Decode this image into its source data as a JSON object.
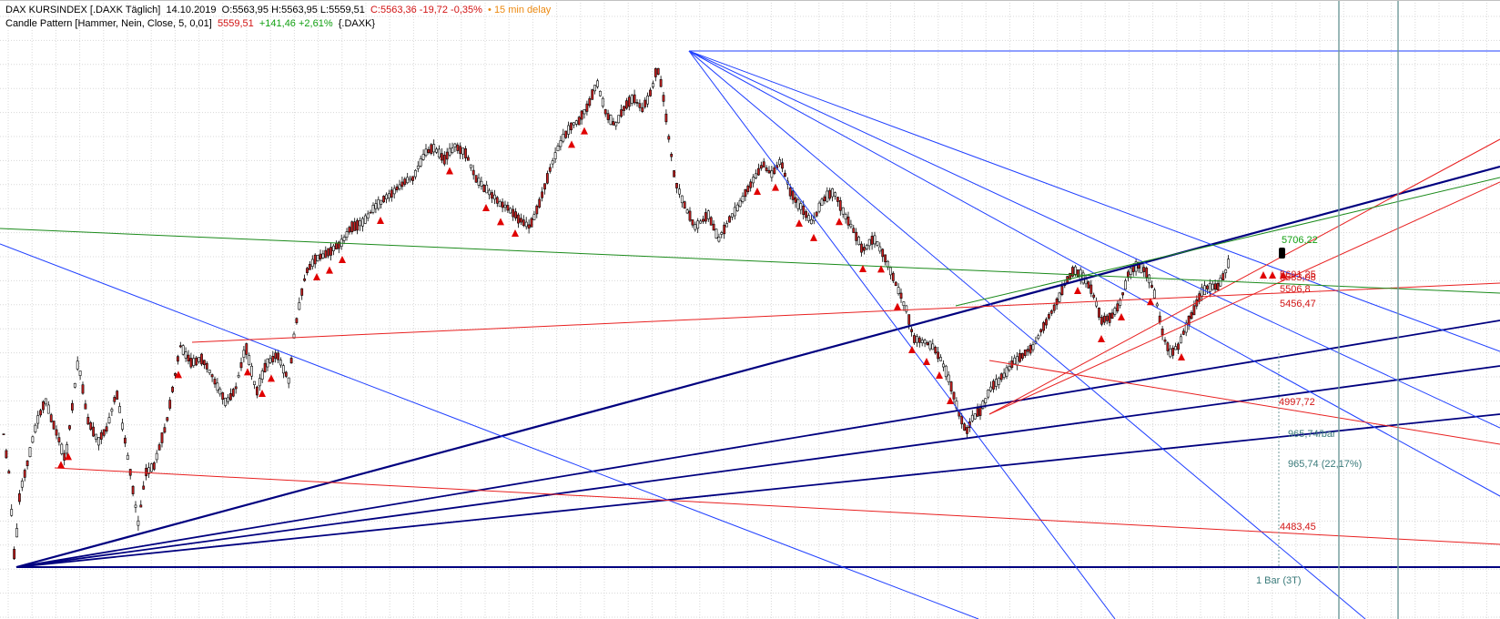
{
  "header": {
    "line1": {
      "symbol": "DAX KURSINDEX [.DAXK Täglich]",
      "date": "14.10.2019",
      "ohl": "O:5563,95 H:5563,95 L:5559,51",
      "close": "C:5563,36 -19,72 -0,35%",
      "delay": "• 15 min delay"
    },
    "line2": {
      "indicator": "Candle Pattern [Hammer, Nein, Close, 5, 0,01]",
      "value": "5559,51",
      "change": "+141,46 +2,61%",
      "symbol": "{.DAXK}"
    }
  },
  "chart_data": {
    "type": "candlestick",
    "value_labels": [
      {
        "text": "5706,22",
        "color": "#12a012"
      },
      {
        "text": "5601,25",
        "color": "#d21414"
      },
      {
        "text": "5583,08",
        "color": "#d21414"
      },
      {
        "text": "5506,8",
        "color": "#d21414"
      },
      {
        "text": "5456,47",
        "color": "#d21414"
      },
      {
        "text": "4997,72",
        "color": "#d21414"
      },
      {
        "text": "965,74/bar",
        "color": "#3a7a7a"
      },
      {
        "text": "965,74 (22,17%)",
        "color": "#3a7a7a"
      },
      {
        "text": "4483,45",
        "color": "#d21414"
      },
      {
        "text": "1 Bar (3T)",
        "color": "#3a7a7a"
      }
    ],
    "colors": {
      "bull": "#ffffff",
      "bear": "#c82020",
      "wick": "#000000",
      "hammer_marker": "#e00000",
      "navy": "#00007f",
      "blue": "#1f3fff",
      "red_line": "#e82020",
      "green_line": "#1a8a1a",
      "teal": "#6f9a9a",
      "grid": "#d8d8d8"
    }
  }
}
